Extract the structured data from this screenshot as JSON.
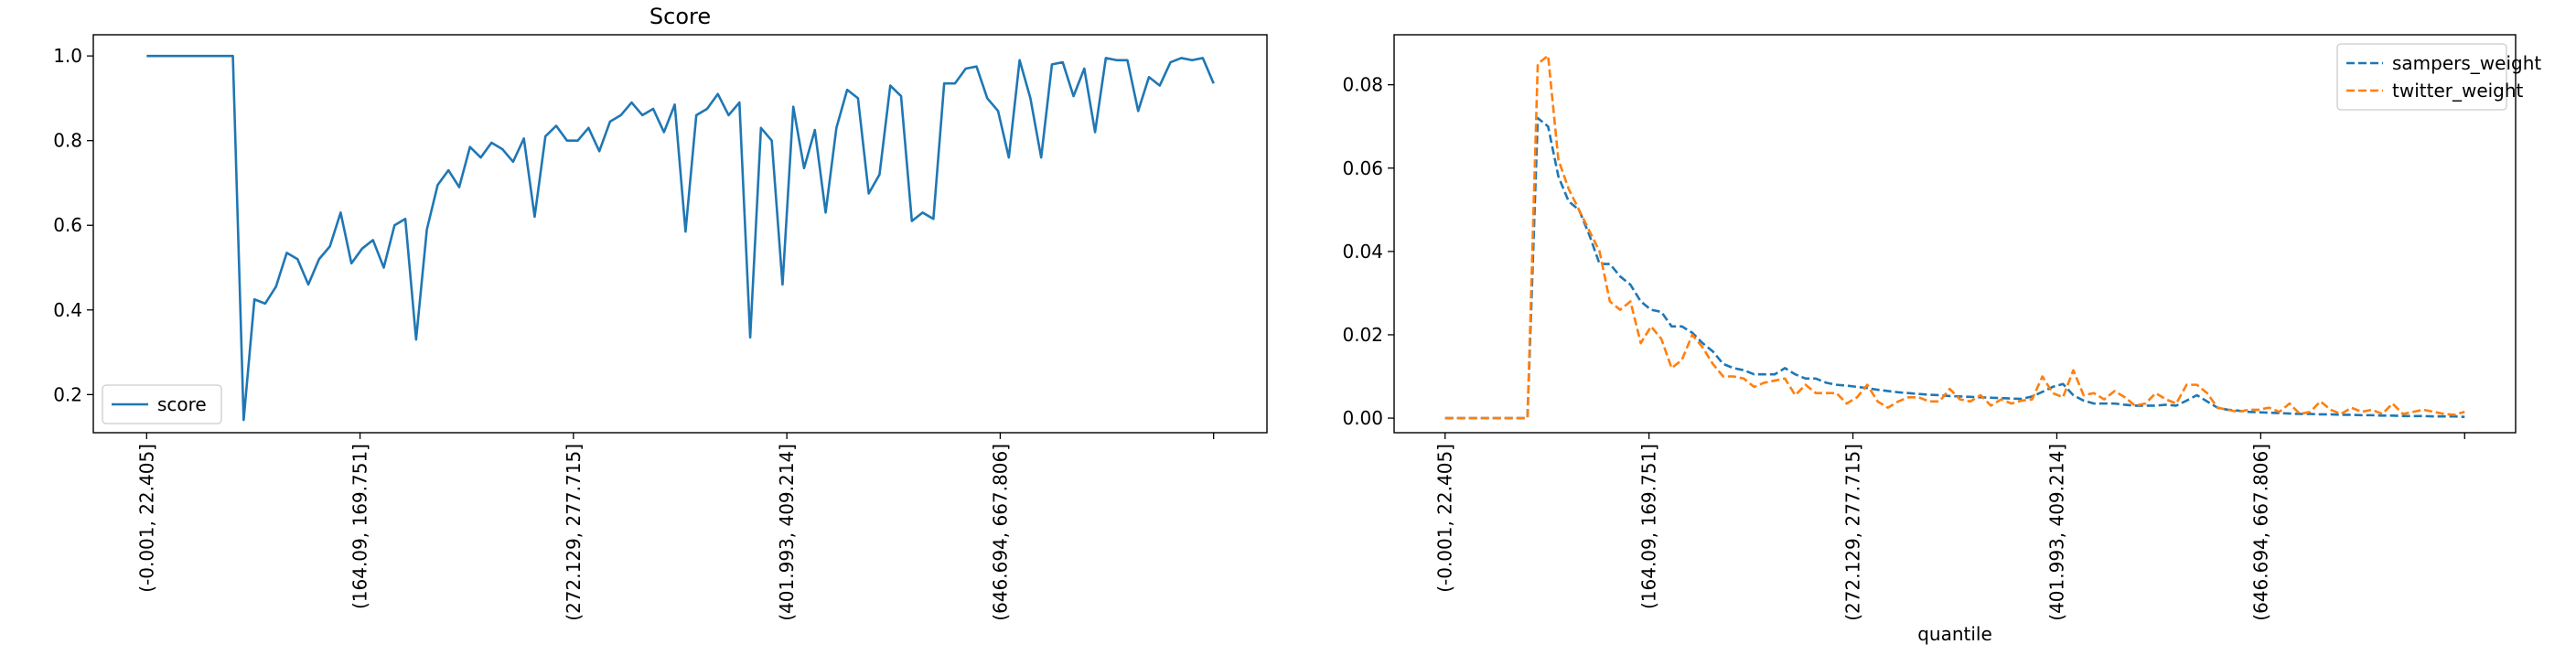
{
  "chart_data": [
    {
      "type": "line",
      "title": "Score",
      "xlabel": "",
      "ylabel": "",
      "n_points": 100,
      "x_tick_positions": [
        0,
        20,
        40,
        60,
        80,
        100
      ],
      "x_tick_labels": [
        "(-0.001, 22.405]",
        "(164.09, 169.751]",
        "(272.129, 277.715]",
        "(401.993, 409.214]",
        "(646.694, 667.806]",
        ""
      ],
      "yticks": [
        0.2,
        0.4,
        0.6,
        0.8,
        1.0
      ],
      "ytick_labels": [
        "0.2",
        "0.4",
        "0.6",
        "0.8",
        "1.0"
      ],
      "ylim": [
        0.11,
        1.05
      ],
      "xlim": [
        -5,
        105
      ],
      "grid": false,
      "legend": "lower left",
      "series": [
        {
          "name": "score",
          "color": "#1f77b4",
          "dash": "solid",
          "values": [
            1.0,
            1.0,
            1.0,
            1.0,
            1.0,
            1.0,
            1.0,
            1.0,
            1.0,
            0.14,
            0.425,
            0.415,
            0.455,
            0.535,
            0.52,
            0.46,
            0.52,
            0.55,
            0.63,
            0.51,
            0.545,
            0.565,
            0.5,
            0.6,
            0.615,
            0.33,
            0.59,
            0.695,
            0.73,
            0.69,
            0.785,
            0.76,
            0.795,
            0.78,
            0.75,
            0.805,
            0.62,
            0.81,
            0.835,
            0.8,
            0.8,
            0.83,
            0.775,
            0.845,
            0.86,
            0.89,
            0.86,
            0.875,
            0.82,
            0.885,
            0.585,
            0.86,
            0.875,
            0.91,
            0.86,
            0.89,
            0.335,
            0.83,
            0.8,
            0.46,
            0.88,
            0.735,
            0.825,
            0.63,
            0.83,
            0.92,
            0.9,
            0.675,
            0.72,
            0.93,
            0.905,
            0.61,
            0.63,
            0.615,
            0.935,
            0.935,
            0.97,
            0.975,
            0.9,
            0.87,
            0.76,
            0.99,
            0.9,
            0.76,
            0.98,
            0.985,
            0.905,
            0.97,
            0.82,
            0.995,
            0.99,
            0.99,
            0.87,
            0.95,
            0.93,
            0.985,
            0.995,
            0.99,
            0.995,
            0.935
          ]
        }
      ]
    },
    {
      "type": "line",
      "title": "",
      "xlabel": "quantile",
      "ylabel": "",
      "n_points": 100,
      "x_tick_positions": [
        0,
        20,
        40,
        60,
        80,
        100
      ],
      "x_tick_labels": [
        "(-0.001, 22.405]",
        "(164.09, 169.751]",
        "(272.129, 277.715]",
        "(401.993, 409.214]",
        "(646.694, 667.806]",
        ""
      ],
      "yticks": [
        0.0,
        0.02,
        0.04,
        0.06,
        0.08
      ],
      "ytick_labels": [
        "0.00",
        "0.02",
        "0.04",
        "0.06",
        "0.08"
      ],
      "ylim": [
        -0.0035,
        0.092
      ],
      "xlim": [
        -5,
        105
      ],
      "grid": false,
      "legend": "upper right",
      "series": [
        {
          "name": "sampers_weight",
          "color": "#1f77b4",
          "dash": "dashed",
          "values": [
            0.0,
            0.0,
            0.0,
            0.0,
            0.0,
            0.0,
            0.0,
            0.0,
            0.0,
            0.072,
            0.07,
            0.058,
            0.052,
            0.05,
            0.044,
            0.037,
            0.037,
            0.034,
            0.032,
            0.028,
            0.026,
            0.0255,
            0.022,
            0.022,
            0.0205,
            0.018,
            0.016,
            0.013,
            0.012,
            0.0115,
            0.0105,
            0.0105,
            0.0105,
            0.012,
            0.0105,
            0.0095,
            0.0095,
            0.0085,
            0.008,
            0.0078,
            0.0075,
            0.0072,
            0.0068,
            0.0065,
            0.0062,
            0.006,
            0.0058,
            0.0056,
            0.0055,
            0.0053,
            0.0052,
            0.0051,
            0.005,
            0.0049,
            0.0048,
            0.0047,
            0.0046,
            0.0052,
            0.0063,
            0.0075,
            0.0082,
            0.0055,
            0.0042,
            0.0035,
            0.0035,
            0.0035,
            0.0032,
            0.003,
            0.003,
            0.003,
            0.0032,
            0.003,
            0.0042,
            0.0055,
            0.004,
            0.0025,
            0.002,
            0.0018,
            0.0015,
            0.0014,
            0.0013,
            0.0012,
            0.0011,
            0.001,
            0.001,
            0.0009,
            0.0009,
            0.0008,
            0.0008,
            0.0007,
            0.0007,
            0.0006,
            0.0006,
            0.0005,
            0.0005,
            0.0005,
            0.0004,
            0.0004,
            0.0004,
            0.0003
          ]
        },
        {
          "name": "twitter_weight",
          "color": "#ff7f0e",
          "dash": "dashed",
          "values": [
            0.0,
            0.0,
            0.0,
            0.0,
            0.0,
            0.0,
            0.0,
            0.0,
            0.0,
            0.085,
            0.087,
            0.062,
            0.055,
            0.05,
            0.045,
            0.04,
            0.028,
            0.026,
            0.028,
            0.018,
            0.022,
            0.019,
            0.012,
            0.014,
            0.02,
            0.017,
            0.013,
            0.01,
            0.01,
            0.0095,
            0.0075,
            0.0085,
            0.009,
            0.0095,
            0.0055,
            0.008,
            0.006,
            0.006,
            0.006,
            0.0035,
            0.005,
            0.008,
            0.004,
            0.0025,
            0.004,
            0.005,
            0.005,
            0.004,
            0.004,
            0.007,
            0.0045,
            0.004,
            0.0055,
            0.003,
            0.0045,
            0.0035,
            0.0042,
            0.0045,
            0.01,
            0.006,
            0.005,
            0.0115,
            0.0055,
            0.006,
            0.0045,
            0.0065,
            0.005,
            0.003,
            0.0035,
            0.006,
            0.0045,
            0.0035,
            0.008,
            0.008,
            0.006,
            0.0025,
            0.002,
            0.0015,
            0.002,
            0.002,
            0.0025,
            0.0015,
            0.0035,
            0.001,
            0.0015,
            0.004,
            0.002,
            0.001,
            0.0025,
            0.0015,
            0.002,
            0.001,
            0.0035,
            0.001,
            0.0015,
            0.002,
            0.0015,
            0.001,
            0.0008,
            0.0015
          ]
        }
      ]
    }
  ]
}
